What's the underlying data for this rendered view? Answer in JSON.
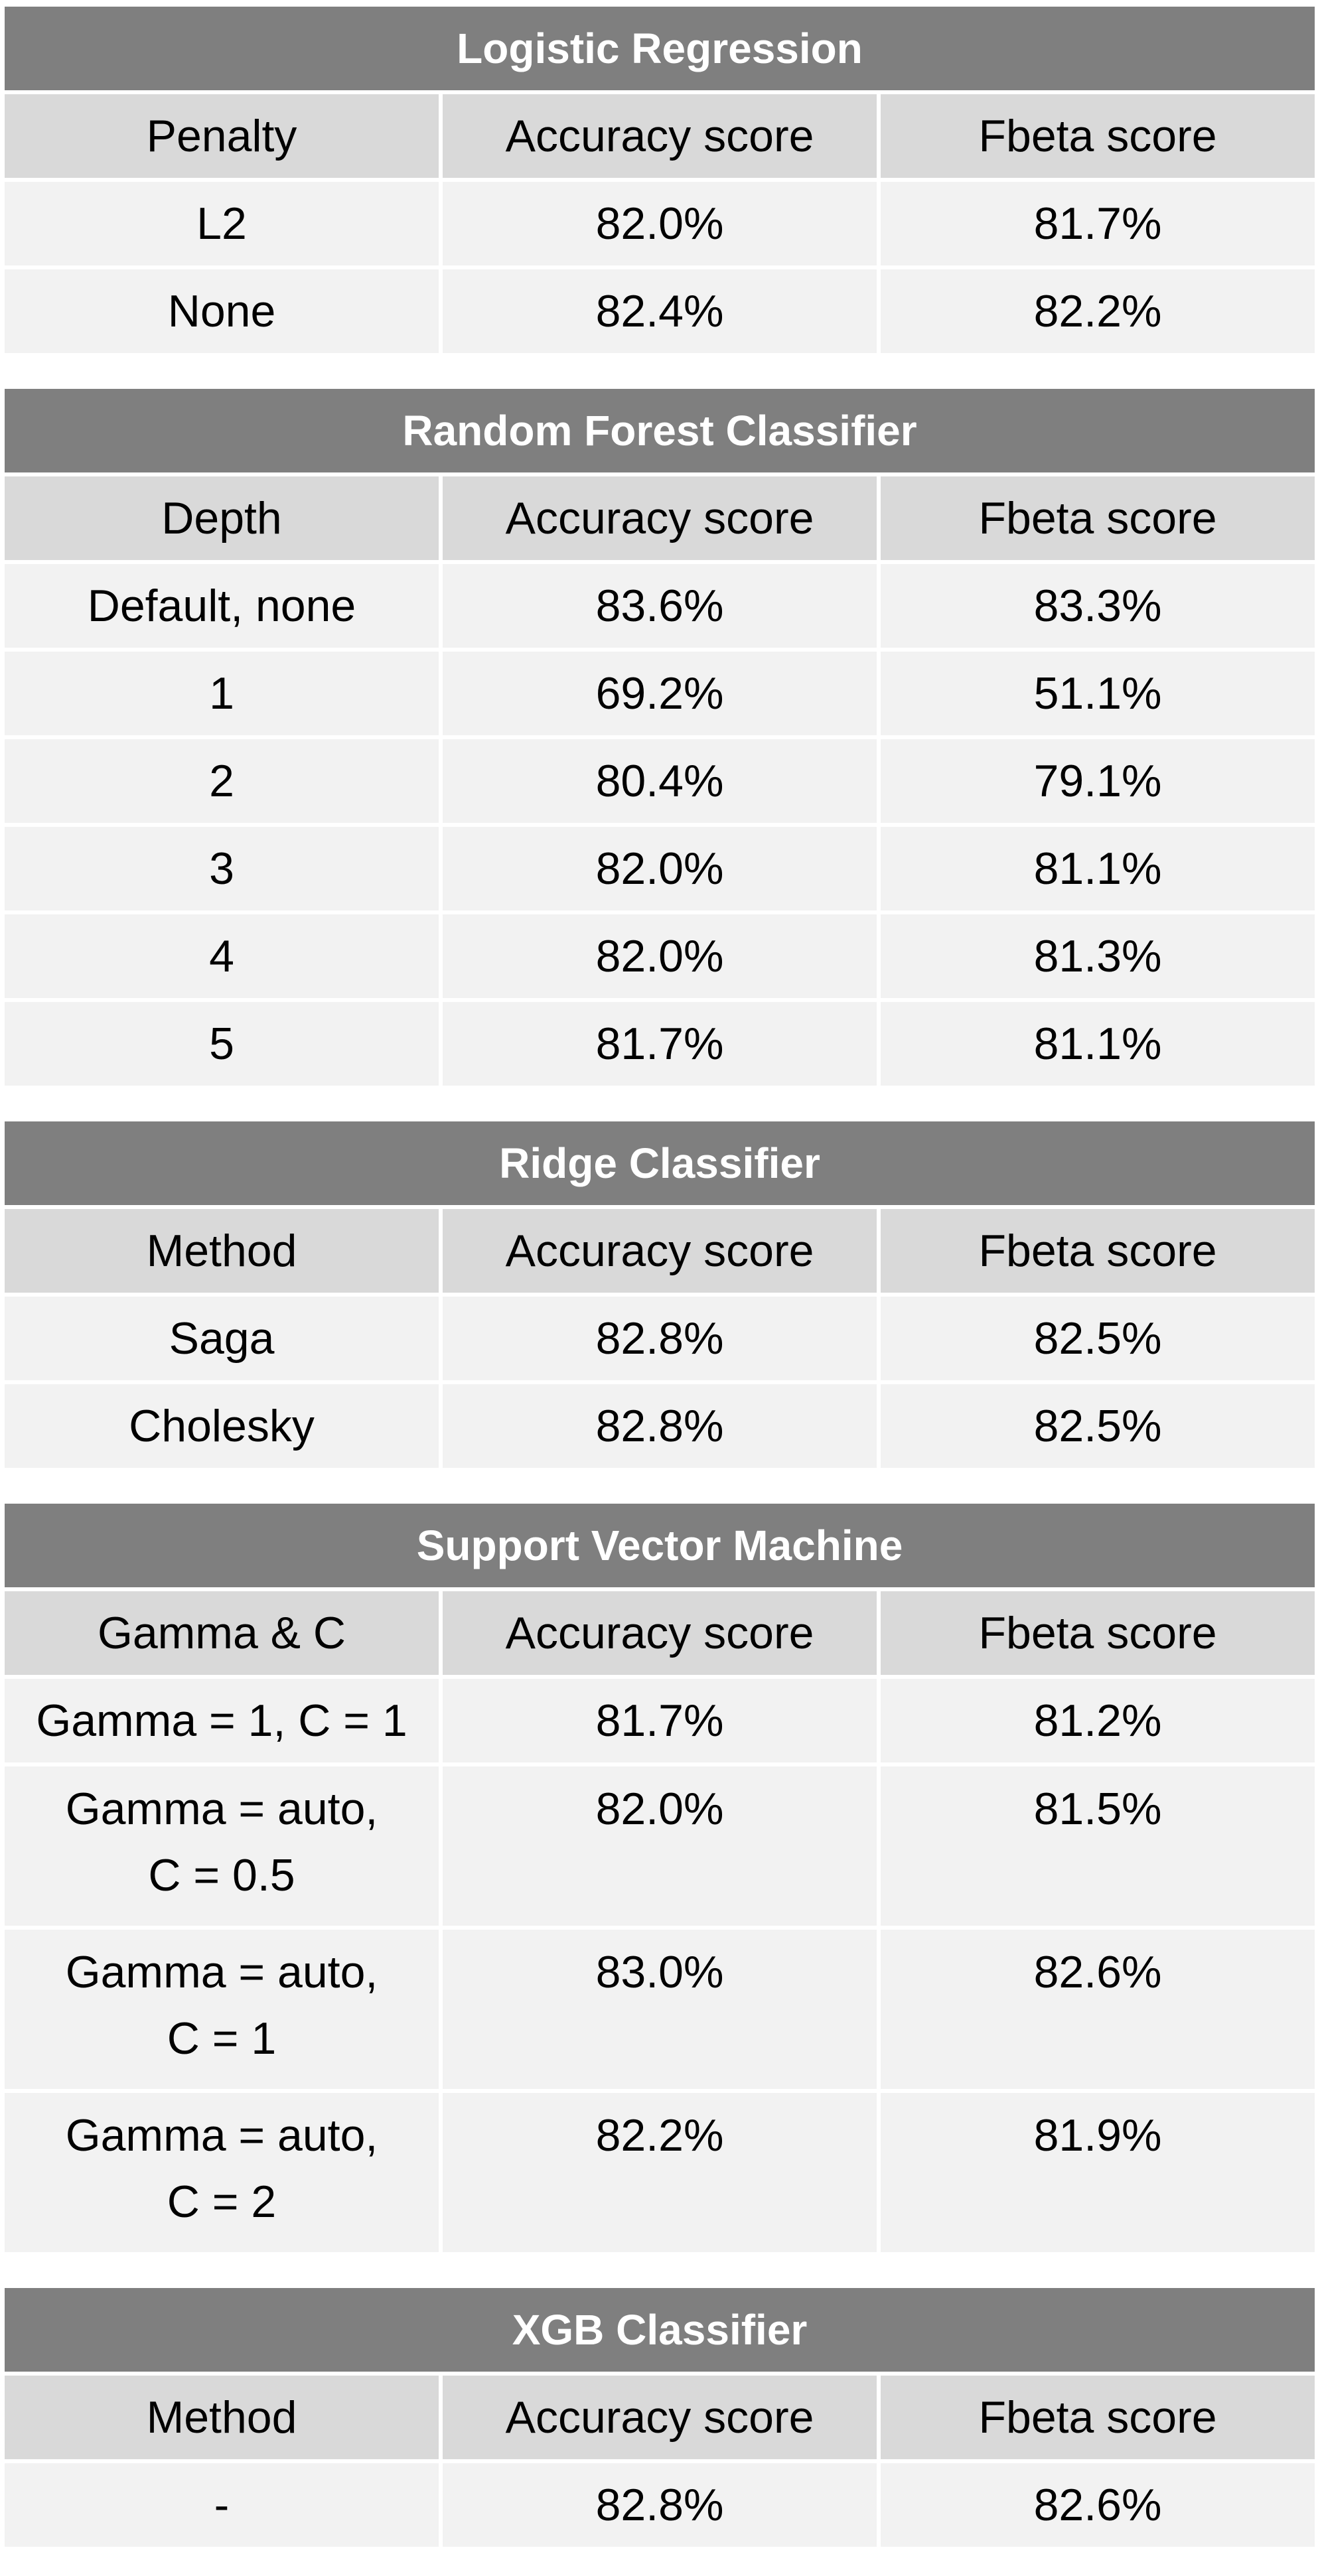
{
  "tables": [
    {
      "title": "Logistic Regression",
      "headers": [
        "Penalty",
        "Accuracy score",
        "Fbeta score"
      ],
      "rows": [
        [
          "L2",
          "82.0%",
          "81.7%"
        ],
        [
          "None",
          "82.4%",
          "82.2%"
        ]
      ]
    },
    {
      "title": "Random Forest Classifier",
      "headers": [
        "Depth",
        "Accuracy score",
        "Fbeta score"
      ],
      "rows": [
        [
          "Default, none",
          "83.6%",
          "83.3%"
        ],
        [
          "1",
          "69.2%",
          "51.1%"
        ],
        [
          "2",
          "80.4%",
          "79.1%"
        ],
        [
          "3",
          "82.0%",
          "81.1%"
        ],
        [
          "4",
          "82.0%",
          "81.3%"
        ],
        [
          "5",
          "81.7%",
          "81.1%"
        ]
      ]
    },
    {
      "title": "Ridge Classifier",
      "headers": [
        "Method",
        "Accuracy score",
        "Fbeta score"
      ],
      "rows": [
        [
          "Saga",
          "82.8%",
          "82.5%"
        ],
        [
          "Cholesky",
          "82.8%",
          "82.5%"
        ]
      ]
    },
    {
      "title": "Support Vector Machine",
      "headers": [
        "Gamma & C",
        "Accuracy score",
        "Fbeta score"
      ],
      "rows": [
        [
          "Gamma = 1, C = 1",
          "81.7%",
          "81.2%"
        ],
        [
          "Gamma = auto,\nC = 0.5",
          "82.0%",
          "81.5%"
        ],
        [
          "Gamma = auto,\nC = 1",
          "83.0%",
          "82.6%"
        ],
        [
          "Gamma = auto,\nC = 2",
          "82.2%",
          "81.9%"
        ]
      ]
    },
    {
      "title": "XGB Classifier",
      "headers": [
        "Method",
        "Accuracy score",
        "Fbeta score"
      ],
      "rows": [
        [
          "-",
          "82.8%",
          "82.6%"
        ]
      ]
    }
  ],
  "colors": {
    "title_bg": "#7f7f7f",
    "header_bg": "#d9d9d9",
    "body_bg": "#f2f2f2",
    "title_text": "#ffffff",
    "text": "#000000"
  }
}
